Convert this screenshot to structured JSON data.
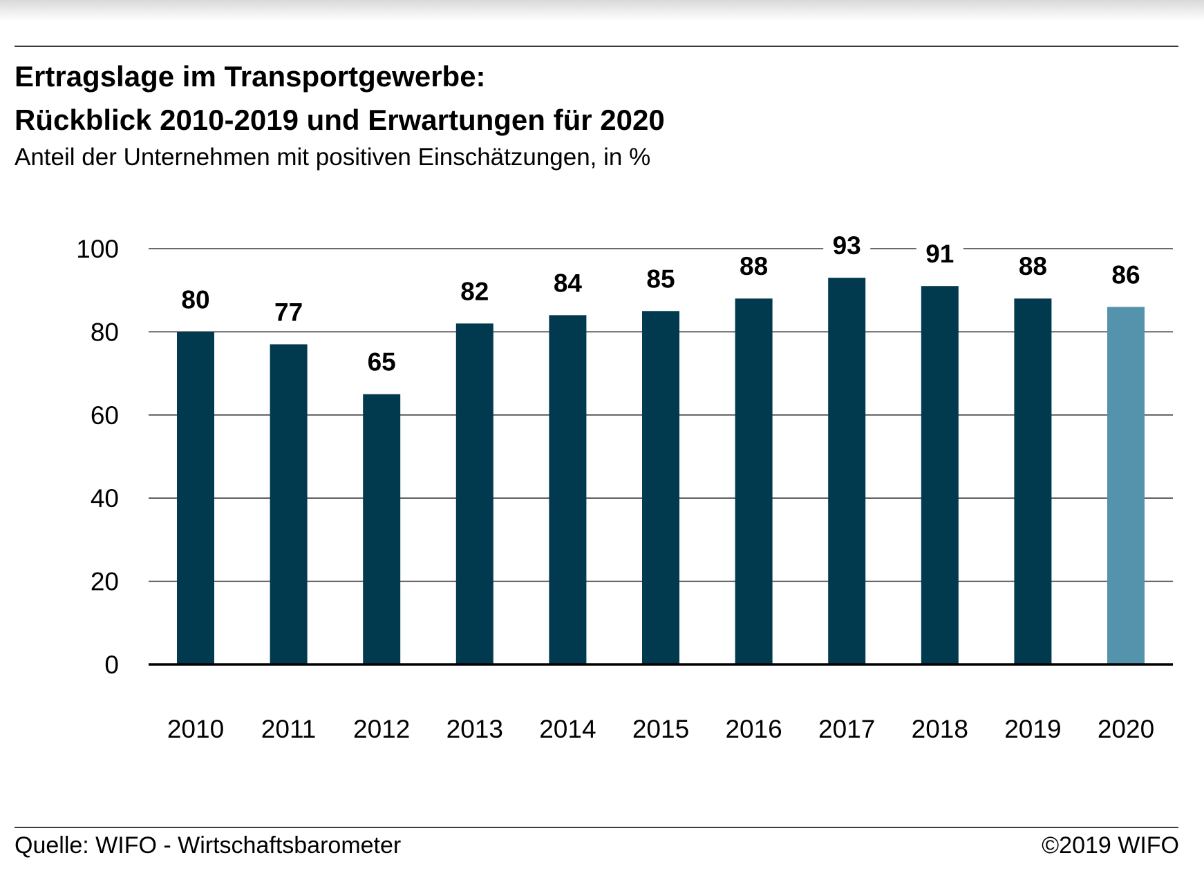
{
  "header": {
    "title_line1": "Ertragslage im Transportgewerbe:",
    "title_line2": "Rückblick 2010-2019 und Erwartungen für 2020",
    "subtitle": "Anteil der Unternehmen mit positiven Einschätzungen, in %"
  },
  "footer": {
    "source": "Quelle: WIFO - Wirtschaftsbarometer",
    "copyright": "©2019 WIFO"
  },
  "chart_data": {
    "type": "bar",
    "categories": [
      "2010",
      "2011",
      "2012",
      "2013",
      "2014",
      "2015",
      "2016",
      "2017",
      "2018",
      "2019",
      "2020"
    ],
    "values": [
      80,
      77,
      65,
      82,
      84,
      85,
      88,
      93,
      91,
      88,
      86
    ],
    "data_labels": [
      "80",
      "77",
      "65",
      "82",
      "84",
      "85",
      "88",
      "93",
      "91",
      "88",
      "86"
    ],
    "ylim": [
      0,
      100
    ],
    "yticks": [
      0,
      20,
      40,
      60,
      80,
      100
    ],
    "grid": true,
    "colors": {
      "bar": "#013a4f",
      "forecast_bar": "#5592ab",
      "grid": "#3a3a3a",
      "axis": "#000000"
    },
    "forecast_categories": [
      "2020"
    ]
  }
}
